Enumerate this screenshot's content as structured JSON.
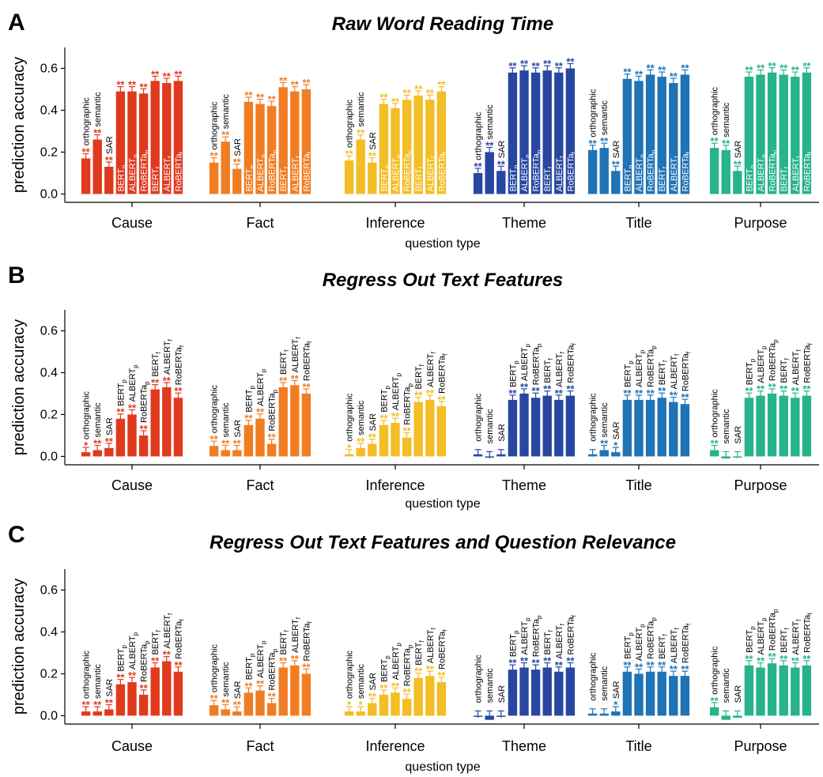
{
  "figure": {
    "x_axis_label": "question type",
    "y_axis_label": "prediction accuracy",
    "y_ticks": [
      "0.0",
      "0.2",
      "0.4",
      "0.6"
    ],
    "ylim": [
      -0.04,
      0.7
    ]
  },
  "groups": [
    {
      "name": "Cause",
      "color": "#e03a1e"
    },
    {
      "name": "Fact",
      "color": "#f07d22"
    },
    {
      "name": "Inference",
      "color": "#f3bd25"
    },
    {
      "name": "Theme",
      "color": "#2747a0"
    },
    {
      "name": "Title",
      "color": "#1f73b7"
    },
    {
      "name": "Purpose",
      "color": "#27b38b"
    }
  ],
  "bar_labels": [
    {
      "base": "orthographic",
      "sub": ""
    },
    {
      "base": "semantic",
      "sub": ""
    },
    {
      "base": "SAR",
      "sub": ""
    },
    {
      "base": "BERT",
      "sub": "p"
    },
    {
      "base": "ALBERT",
      "sub": "p"
    },
    {
      "base": "RoBERTa",
      "sub": "p"
    },
    {
      "base": "BERT",
      "sub": "f"
    },
    {
      "base": "ALBERT",
      "sub": "f"
    },
    {
      "base": "RoBERTa",
      "sub": "f"
    }
  ],
  "chart_data": [
    {
      "panel": "A",
      "title": "Raw Word Reading Time",
      "type": "bar",
      "xlabel": "question type",
      "ylabel": "prediction accuracy",
      "label_mode": "inside",
      "categories": [
        "Cause",
        "Fact",
        "Inference",
        "Theme",
        "Title",
        "Purpose"
      ],
      "series_labels": [
        "orthographic",
        "semantic",
        "SAR",
        "BERTp",
        "ALBERTp",
        "RoBERTap",
        "BERTf",
        "ALBERTf",
        "RoBERTaf"
      ],
      "values": [
        [
          0.17,
          0.26,
          0.13,
          0.49,
          0.49,
          0.48,
          0.54,
          0.53,
          0.54
        ],
        [
          0.15,
          0.25,
          0.12,
          0.44,
          0.43,
          0.42,
          0.51,
          0.49,
          0.5
        ],
        [
          0.16,
          0.26,
          0.15,
          0.43,
          0.41,
          0.45,
          0.47,
          0.45,
          0.49
        ],
        [
          0.1,
          0.2,
          0.11,
          0.58,
          0.59,
          0.58,
          0.59,
          0.58,
          0.6
        ],
        [
          0.21,
          0.22,
          0.11,
          0.55,
          0.54,
          0.57,
          0.56,
          0.53,
          0.57
        ],
        [
          0.22,
          0.21,
          0.11,
          0.56,
          0.57,
          0.58,
          0.57,
          0.56,
          0.58
        ]
      ],
      "significance": [
        [
          "**",
          "**",
          "**",
          "**",
          "**",
          "**",
          "**",
          "**",
          "**"
        ],
        [
          "**",
          "**",
          "**",
          "**",
          "**",
          "**",
          "**",
          "**",
          "**"
        ],
        [
          "**",
          "**",
          "**",
          "**",
          "**",
          "**",
          "**",
          "**",
          "**"
        ],
        [
          "**",
          "**",
          "**",
          "**",
          "**",
          "**",
          "**",
          "**",
          "**"
        ],
        [
          "**",
          "**",
          "**",
          "**",
          "**",
          "**",
          "**",
          "**",
          "**"
        ],
        [
          "**",
          "**",
          "**",
          "**",
          "**",
          "**",
          "**",
          "**",
          "**"
        ]
      ]
    },
    {
      "panel": "B",
      "title": "Regress Out Text Features",
      "type": "bar",
      "xlabel": "question type",
      "ylabel": "prediction accuracy",
      "label_mode": "above",
      "categories": [
        "Cause",
        "Fact",
        "Inference",
        "Theme",
        "Title",
        "Purpose"
      ],
      "series_labels": [
        "orthographic",
        "semantic",
        "SAR",
        "BERTp",
        "ALBERTp",
        "RoBERTap",
        "BERTf",
        "ALBERTf",
        "RoBERTaf"
      ],
      "values": [
        [
          0.02,
          0.03,
          0.04,
          0.18,
          0.2,
          0.1,
          0.32,
          0.33,
          0.28
        ],
        [
          0.05,
          0.03,
          0.03,
          0.15,
          0.18,
          0.06,
          0.33,
          0.34,
          0.3
        ],
        [
          0.01,
          0.04,
          0.06,
          0.15,
          0.16,
          0.09,
          0.26,
          0.27,
          0.24
        ],
        [
          0.01,
          0.0,
          0.01,
          0.27,
          0.3,
          0.28,
          0.29,
          0.27,
          0.29
        ],
        [
          0.01,
          0.03,
          0.02,
          0.27,
          0.27,
          0.27,
          0.28,
          0.26,
          0.25
        ],
        [
          0.03,
          -0.01,
          0.0,
          0.28,
          0.29,
          0.3,
          0.29,
          0.28,
          0.29
        ]
      ],
      "significance": [
        [
          "*",
          "**",
          "**",
          "**",
          "**",
          "**",
          "**",
          "**",
          "**"
        ],
        [
          "**",
          "**",
          "**",
          "**",
          "**",
          "**",
          "**",
          "**",
          "**"
        ],
        [
          "*",
          "**",
          "**",
          "**",
          "**",
          "**",
          "**",
          "**",
          "**"
        ],
        [
          "",
          "",
          "",
          "**",
          "**",
          "**",
          "**",
          "**",
          "**"
        ],
        [
          "",
          "**",
          "*",
          "**",
          "**",
          "**",
          "**",
          "**",
          "**"
        ],
        [
          "**",
          "",
          "",
          "**",
          "**",
          "**",
          "**",
          "**",
          "**"
        ]
      ]
    },
    {
      "panel": "C",
      "title": "Regress Out Text Features and Question Relevance",
      "type": "bar",
      "xlabel": "question type",
      "ylabel": "prediction accuracy",
      "label_mode": "above",
      "categories": [
        "Cause",
        "Fact",
        "Inference",
        "Theme",
        "Title",
        "Purpose"
      ],
      "series_labels": [
        "orthographic",
        "semantic",
        "SAR",
        "BERTp",
        "ALBERTp",
        "RoBERTap",
        "BERTf",
        "ALBERTf",
        "RoBERTaf"
      ],
      "values": [
        [
          0.02,
          0.02,
          0.03,
          0.15,
          0.16,
          0.1,
          0.23,
          0.26,
          0.21
        ],
        [
          0.05,
          0.03,
          0.02,
          0.11,
          0.12,
          0.06,
          0.23,
          0.24,
          0.2
        ],
        [
          0.02,
          0.02,
          0.06,
          0.1,
          0.11,
          0.08,
          0.18,
          0.19,
          0.16
        ],
        [
          0.0,
          -0.02,
          0.0,
          0.22,
          0.23,
          0.22,
          0.23,
          0.21,
          0.23
        ],
        [
          0.01,
          0.01,
          0.02,
          0.21,
          0.2,
          0.21,
          0.21,
          0.19,
          0.19
        ],
        [
          0.04,
          -0.02,
          -0.01,
          0.24,
          0.23,
          0.25,
          0.24,
          0.23,
          0.24
        ]
      ],
      "significance": [
        [
          "**",
          "**",
          "**",
          "**",
          "**",
          "**",
          "**",
          "**",
          "**"
        ],
        [
          "**",
          "**",
          "**",
          "**",
          "**",
          "**",
          "**",
          "**",
          "**"
        ],
        [
          "*",
          "*",
          "**",
          "**",
          "**",
          "**",
          "**",
          "**",
          "**"
        ],
        [
          "",
          "",
          "",
          "**",
          "**",
          "**",
          "**",
          "**",
          "**"
        ],
        [
          "",
          "",
          "*",
          "**",
          "**",
          "**",
          "**",
          "**",
          "**"
        ],
        [
          "**",
          "",
          "",
          "**",
          "**",
          "**",
          "**",
          "**",
          "**"
        ]
      ]
    }
  ]
}
